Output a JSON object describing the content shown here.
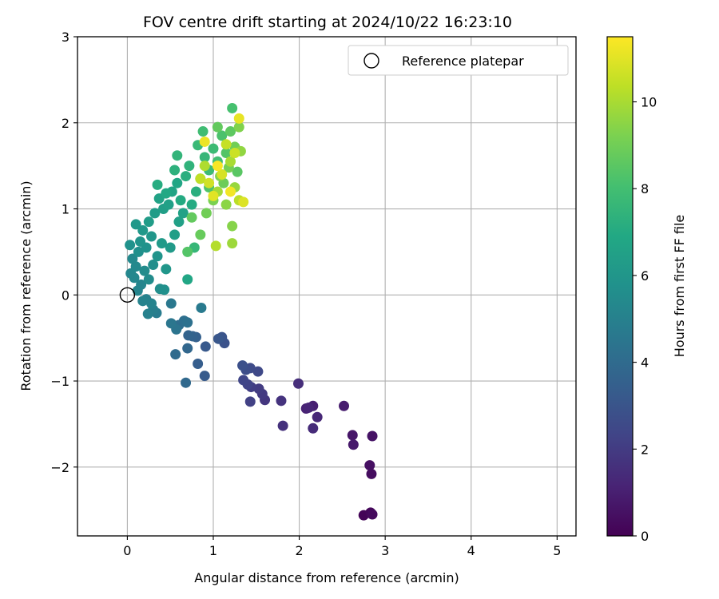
{
  "chart_data": {
    "type": "scatter",
    "title": "FOV centre drift starting at 2024/10/22 16:23:10",
    "xlabel": "Angular distance from reference (arcmin)",
    "ylabel": "Rotation from reference (arcmin)",
    "xlim": [
      -0.58,
      5.22
    ],
    "ylim": [
      -2.8,
      3.0
    ],
    "xticks": [
      0,
      1,
      2,
      3,
      4,
      5
    ],
    "yticks": [
      -2,
      -1,
      0,
      1,
      2,
      3
    ],
    "grid": true,
    "legend": {
      "placement": "top-right",
      "entries": [
        "Reference platepar"
      ]
    },
    "reference_point": {
      "x": 0,
      "y": 0
    },
    "colorbar": {
      "label": "Hours from first FF file",
      "range": [
        0,
        11.5
      ],
      "ticks": [
        0,
        2,
        4,
        6,
        8,
        10
      ],
      "colormap": "viridis"
    },
    "points": [
      {
        "x": 2.75,
        "y": -2.56,
        "t": 0.1
      },
      {
        "x": 2.83,
        "y": -2.53,
        "t": 0.2
      },
      {
        "x": 2.85,
        "y": -2.55,
        "t": 0.3
      },
      {
        "x": 2.84,
        "y": -2.08,
        "t": 0.4
      },
      {
        "x": 2.82,
        "y": -1.98,
        "t": 0.5
      },
      {
        "x": 2.85,
        "y": -1.64,
        "t": 0.6
      },
      {
        "x": 2.62,
        "y": -1.63,
        "t": 0.7
      },
      {
        "x": 2.63,
        "y": -1.74,
        "t": 0.8
      },
      {
        "x": 2.52,
        "y": -1.29,
        "t": 0.9
      },
      {
        "x": 2.16,
        "y": -1.29,
        "t": 1.0
      },
      {
        "x": 2.08,
        "y": -1.32,
        "t": 1.1
      },
      {
        "x": 2.11,
        "y": -1.31,
        "t": 1.2
      },
      {
        "x": 2.21,
        "y": -1.42,
        "t": 1.3
      },
      {
        "x": 2.16,
        "y": -1.55,
        "t": 1.4
      },
      {
        "x": 1.99,
        "y": -1.03,
        "t": 1.5
      },
      {
        "x": 1.81,
        "y": -1.52,
        "t": 1.6
      },
      {
        "x": 1.79,
        "y": -1.23,
        "t": 1.7
      },
      {
        "x": 1.6,
        "y": -1.22,
        "t": 1.8
      },
      {
        "x": 1.57,
        "y": -1.15,
        "t": 1.9
      },
      {
        "x": 1.53,
        "y": -1.09,
        "t": 2.0
      },
      {
        "x": 1.44,
        "y": -1.07,
        "t": 2.1
      },
      {
        "x": 1.43,
        "y": -1.24,
        "t": 2.2
      },
      {
        "x": 1.4,
        "y": -1.04,
        "t": 2.3
      },
      {
        "x": 1.35,
        "y": -0.99,
        "t": 2.4
      },
      {
        "x": 1.52,
        "y": -0.89,
        "t": 2.5
      },
      {
        "x": 1.43,
        "y": -0.85,
        "t": 2.6
      },
      {
        "x": 1.38,
        "y": -0.87,
        "t": 2.7
      },
      {
        "x": 1.34,
        "y": -0.82,
        "t": 2.8
      },
      {
        "x": 1.13,
        "y": -0.56,
        "t": 2.9
      },
      {
        "x": 1.1,
        "y": -0.49,
        "t": 3.0
      },
      {
        "x": 1.06,
        "y": -0.51,
        "t": 3.1
      },
      {
        "x": 0.91,
        "y": -0.6,
        "t": 3.2
      },
      {
        "x": 0.9,
        "y": -0.94,
        "t": 3.3
      },
      {
        "x": 0.82,
        "y": -0.8,
        "t": 3.4
      },
      {
        "x": 0.8,
        "y": -0.49,
        "t": 3.5
      },
      {
        "x": 0.76,
        "y": -0.48,
        "t": 3.6
      },
      {
        "x": 0.71,
        "y": -0.47,
        "t": 3.7
      },
      {
        "x": 0.7,
        "y": -0.62,
        "t": 3.8
      },
      {
        "x": 0.68,
        "y": -1.02,
        "t": 3.9
      },
      {
        "x": 0.56,
        "y": -0.69,
        "t": 4.0
      },
      {
        "x": 0.6,
        "y": -0.35,
        "t": 4.1
      },
      {
        "x": 0.66,
        "y": -0.3,
        "t": 4.2
      },
      {
        "x": 0.7,
        "y": -0.32,
        "t": 4.3
      },
      {
        "x": 0.57,
        "y": -0.4,
        "t": 4.4
      },
      {
        "x": 0.51,
        "y": -0.33,
        "t": 4.5
      },
      {
        "x": 0.51,
        "y": -0.1,
        "t": 4.6
      },
      {
        "x": 0.86,
        "y": -0.15,
        "t": 4.7
      },
      {
        "x": 0.34,
        "y": -0.21,
        "t": 4.8
      },
      {
        "x": 0.3,
        "y": -0.17,
        "t": 4.9
      },
      {
        "x": 0.24,
        "y": -0.22,
        "t": 5.0
      },
      {
        "x": 0.22,
        "y": -0.05,
        "t": 5.0
      },
      {
        "x": 0.18,
        "y": -0.07,
        "t": 5.1
      },
      {
        "x": 0.28,
        "y": -0.1,
        "t": 5.1
      },
      {
        "x": 0.12,
        "y": 0.05,
        "t": 5.2
      },
      {
        "x": 0.16,
        "y": 0.12,
        "t": 5.2
      },
      {
        "x": 0.08,
        "y": 0.2,
        "t": 5.3
      },
      {
        "x": 0.04,
        "y": 0.25,
        "t": 5.3
      },
      {
        "x": 0.06,
        "y": 0.42,
        "t": 5.4
      },
      {
        "x": 0.1,
        "y": 0.33,
        "t": 5.4
      },
      {
        "x": 0.2,
        "y": 0.28,
        "t": 5.5
      },
      {
        "x": 0.25,
        "y": 0.18,
        "t": 5.5
      },
      {
        "x": 0.3,
        "y": 0.35,
        "t": 5.6
      },
      {
        "x": 0.38,
        "y": 0.07,
        "t": 5.6
      },
      {
        "x": 0.43,
        "y": 0.06,
        "t": 5.7
      },
      {
        "x": 0.13,
        "y": 0.5,
        "t": 5.7
      },
      {
        "x": 0.22,
        "y": 0.55,
        "t": 5.8
      },
      {
        "x": 0.03,
        "y": 0.58,
        "t": 5.8
      },
      {
        "x": 0.35,
        "y": 0.45,
        "t": 5.9
      },
      {
        "x": 0.15,
        "y": 0.62,
        "t": 5.9
      },
      {
        "x": 0.28,
        "y": 0.68,
        "t": 6.0
      },
      {
        "x": 0.45,
        "y": 0.3,
        "t": 6.0
      },
      {
        "x": 0.1,
        "y": 0.82,
        "t": 6.1
      },
      {
        "x": 0.18,
        "y": 0.75,
        "t": 6.1
      },
      {
        "x": 0.4,
        "y": 0.6,
        "t": 6.2
      },
      {
        "x": 0.5,
        "y": 0.55,
        "t": 6.2
      },
      {
        "x": 0.25,
        "y": 0.85,
        "t": 6.3
      },
      {
        "x": 0.32,
        "y": 0.95,
        "t": 6.3
      },
      {
        "x": 0.55,
        "y": 0.7,
        "t": 6.4
      },
      {
        "x": 0.42,
        "y": 1.0,
        "t": 6.4
      },
      {
        "x": 0.6,
        "y": 0.85,
        "t": 6.5
      },
      {
        "x": 0.48,
        "y": 1.05,
        "t": 6.5
      },
      {
        "x": 0.37,
        "y": 1.12,
        "t": 6.6
      },
      {
        "x": 0.65,
        "y": 0.95,
        "t": 6.6
      },
      {
        "x": 0.52,
        "y": 1.2,
        "t": 6.7
      },
      {
        "x": 0.7,
        "y": 0.18,
        "t": 6.8
      },
      {
        "x": 0.58,
        "y": 1.3,
        "t": 6.8
      },
      {
        "x": 0.45,
        "y": 1.18,
        "t": 6.9
      },
      {
        "x": 0.62,
        "y": 1.1,
        "t": 7.0
      },
      {
        "x": 0.75,
        "y": 1.05,
        "t": 7.0
      },
      {
        "x": 0.35,
        "y": 1.28,
        "t": 7.1
      },
      {
        "x": 0.68,
        "y": 1.38,
        "t": 7.2
      },
      {
        "x": 0.8,
        "y": 1.2,
        "t": 7.2
      },
      {
        "x": 0.55,
        "y": 1.45,
        "t": 7.3
      },
      {
        "x": 0.72,
        "y": 1.5,
        "t": 7.4
      },
      {
        "x": 0.85,
        "y": 1.35,
        "t": 7.4
      },
      {
        "x": 0.58,
        "y": 1.62,
        "t": 7.5
      },
      {
        "x": 0.78,
        "y": 0.55,
        "t": 7.6
      },
      {
        "x": 0.9,
        "y": 1.6,
        "t": 7.6
      },
      {
        "x": 0.82,
        "y": 1.74,
        "t": 7.7
      },
      {
        "x": 0.95,
        "y": 1.45,
        "t": 7.8
      },
      {
        "x": 1.0,
        "y": 1.7,
        "t": 7.8
      },
      {
        "x": 0.88,
        "y": 1.9,
        "t": 7.9
      },
      {
        "x": 1.05,
        "y": 1.55,
        "t": 8.0
      },
      {
        "x": 1.22,
        "y": 2.17,
        "t": 8.1
      },
      {
        "x": 1.1,
        "y": 1.85,
        "t": 8.2
      },
      {
        "x": 0.95,
        "y": 1.25,
        "t": 8.3
      },
      {
        "x": 0.7,
        "y": 0.5,
        "t": 8.4
      },
      {
        "x": 1.15,
        "y": 1.65,
        "t": 8.4
      },
      {
        "x": 1.28,
        "y": 1.43,
        "t": 8.5
      },
      {
        "x": 1.2,
        "y": 1.9,
        "t": 8.6
      },
      {
        "x": 0.75,
        "y": 0.9,
        "t": 8.7
      },
      {
        "x": 1.05,
        "y": 1.95,
        "t": 8.7
      },
      {
        "x": 0.85,
        "y": 0.7,
        "t": 8.8
      },
      {
        "x": 1.12,
        "y": 1.3,
        "t": 8.9
      },
      {
        "x": 1.25,
        "y": 1.72,
        "t": 9.0
      },
      {
        "x": 0.92,
        "y": 0.95,
        "t": 9.0
      },
      {
        "x": 1.18,
        "y": 1.48,
        "t": 9.1
      },
      {
        "x": 1.0,
        "y": 1.1,
        "t": 9.2
      },
      {
        "x": 1.3,
        "y": 1.95,
        "t": 9.3
      },
      {
        "x": 1.08,
        "y": 1.38,
        "t": 9.3
      },
      {
        "x": 1.22,
        "y": 0.8,
        "t": 9.4
      },
      {
        "x": 1.15,
        "y": 1.05,
        "t": 9.5
      },
      {
        "x": 1.32,
        "y": 1.67,
        "t": 9.6
      },
      {
        "x": 1.25,
        "y": 1.25,
        "t": 9.7
      },
      {
        "x": 1.22,
        "y": 0.6,
        "t": 9.8
      },
      {
        "x": 1.05,
        "y": 1.2,
        "t": 9.9
      },
      {
        "x": 1.2,
        "y": 1.55,
        "t": 10.0
      },
      {
        "x": 0.9,
        "y": 1.5,
        "t": 10.1
      },
      {
        "x": 1.03,
        "y": 0.57,
        "t": 10.2
      },
      {
        "x": 1.3,
        "y": 1.1,
        "t": 10.3
      },
      {
        "x": 0.85,
        "y": 1.35,
        "t": 10.4
      },
      {
        "x": 1.15,
        "y": 1.75,
        "t": 10.5
      },
      {
        "x": 1.25,
        "y": 1.65,
        "t": 10.6
      },
      {
        "x": 0.95,
        "y": 1.3,
        "t": 10.7
      },
      {
        "x": 1.1,
        "y": 1.4,
        "t": 10.8
      },
      {
        "x": 1.35,
        "y": 1.08,
        "t": 10.9
      },
      {
        "x": 1.0,
        "y": 1.15,
        "t": 11.0
      },
      {
        "x": 1.3,
        "y": 2.05,
        "t": 11.1
      },
      {
        "x": 0.9,
        "y": 1.78,
        "t": 11.2
      },
      {
        "x": 1.2,
        "y": 1.2,
        "t": 11.3
      },
      {
        "x": 1.05,
        "y": 1.5,
        "t": 11.4
      }
    ]
  }
}
